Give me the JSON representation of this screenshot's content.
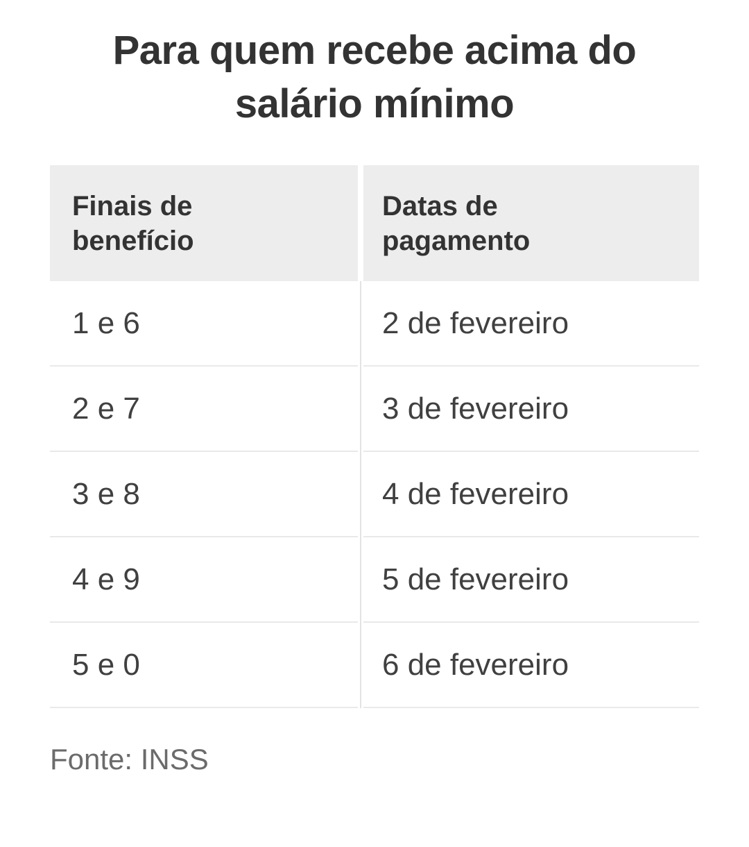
{
  "chart_data": {
    "type": "table",
    "title": "Para quem recebe acima do salário mínimo",
    "columns": [
      "Finais de benefício",
      "Datas de pagamento"
    ],
    "rows": [
      [
        "1 e 6",
        "2 de fevereiro"
      ],
      [
        "2 e 7",
        "3 de fevereiro"
      ],
      [
        "3 e 8",
        "4 de fevereiro"
      ],
      [
        "4 e 9",
        "5 de fevereiro"
      ],
      [
        "5 e 0",
        "6 de fevereiro"
      ]
    ],
    "source": "Fonte: INSS"
  },
  "colors": {
    "background": "#ffffff",
    "header_bg": "#ededed",
    "row_divider": "#e9e9e9",
    "column_divider": "#e3e3e3",
    "title_text": "#333333",
    "body_text": "#404040",
    "source_text": "#6b6b6b"
  }
}
